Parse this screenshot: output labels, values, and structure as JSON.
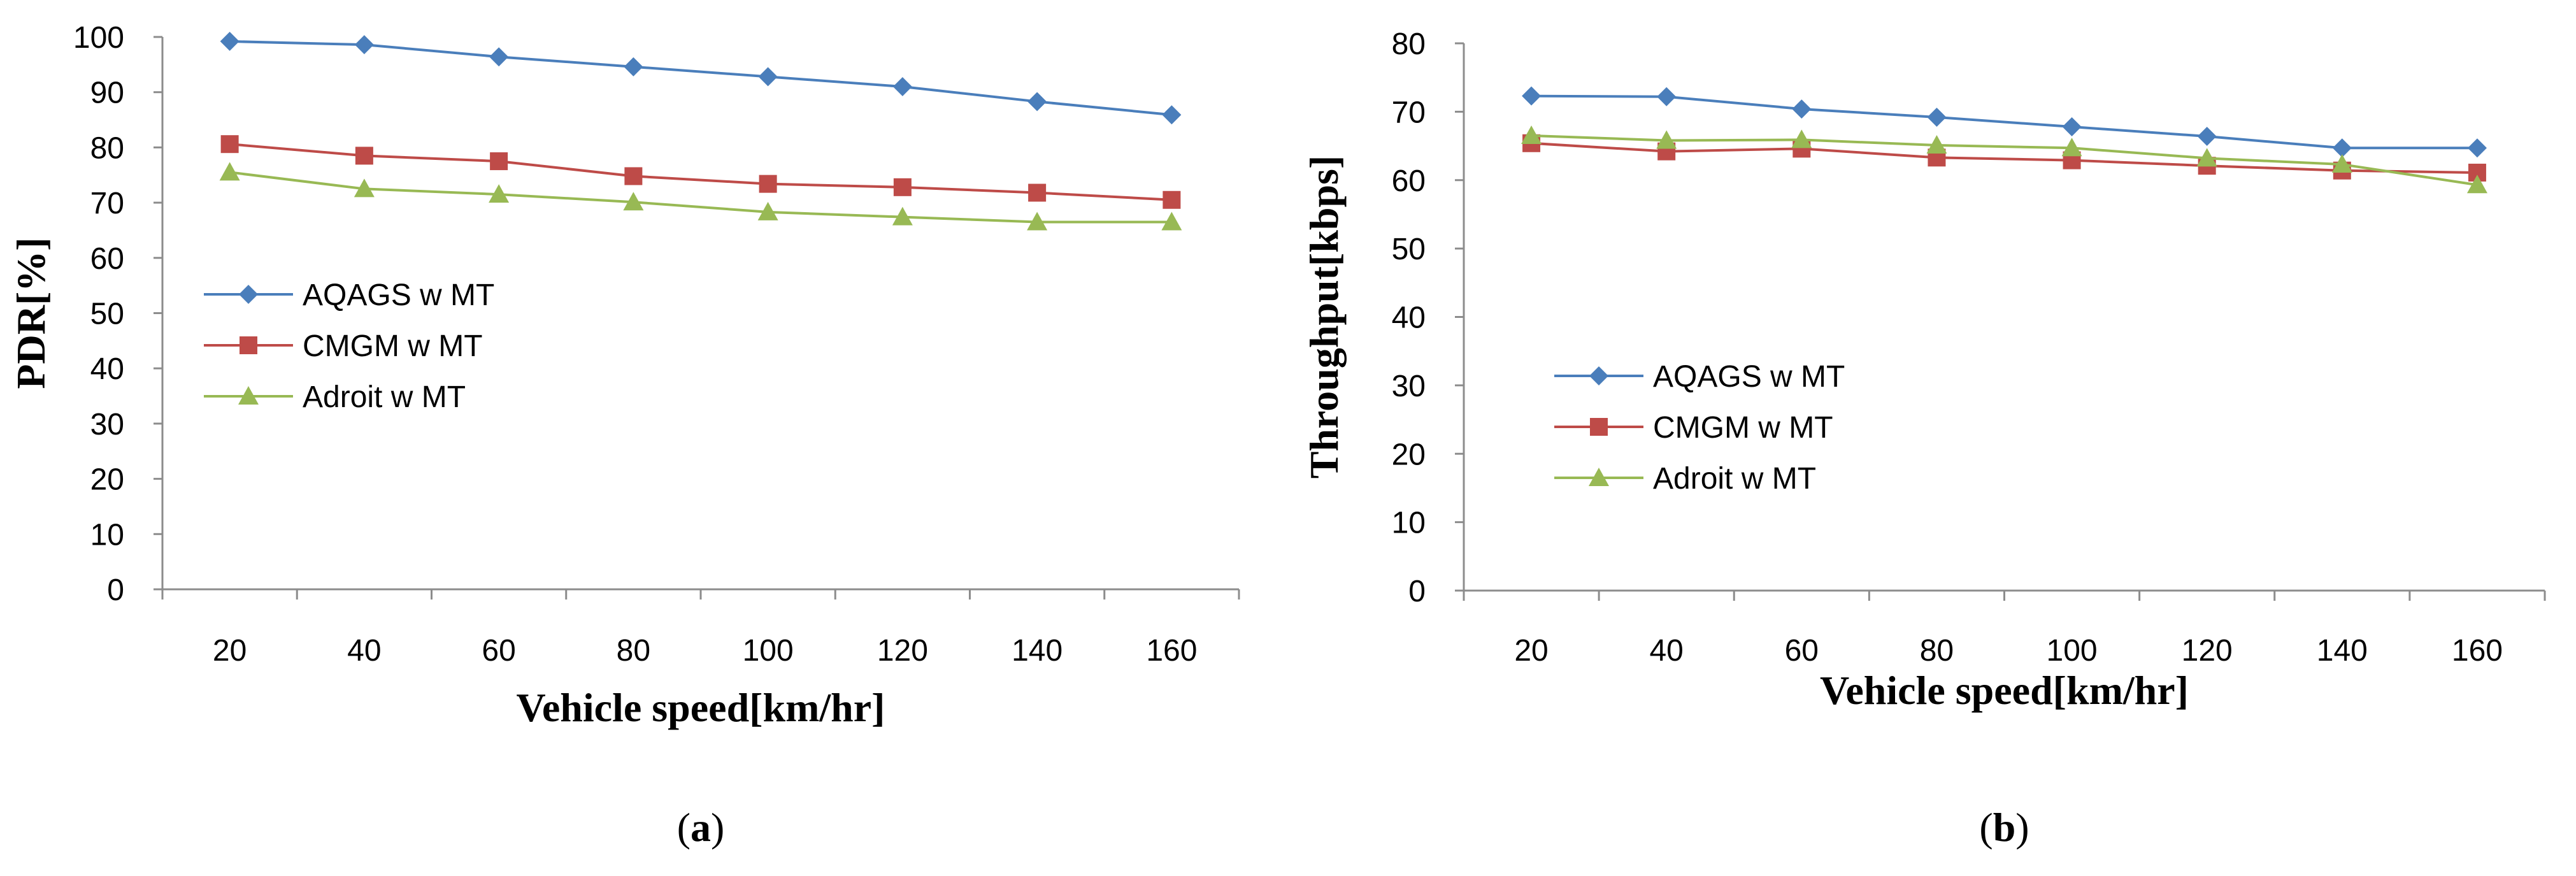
{
  "chart_data": [
    {
      "type": "line",
      "caption_letter": "a",
      "x": [
        20,
        40,
        60,
        80,
        100,
        120,
        140,
        160
      ],
      "xlabel": "Vehicle speed[km/hr]",
      "ylabel": "PDR[%]",
      "ylim": [
        0,
        100
      ],
      "yticks": [
        0,
        10,
        20,
        30,
        40,
        50,
        60,
        70,
        80,
        90,
        100
      ],
      "grid": false,
      "legend_position": "middle-left",
      "series": [
        {
          "name": "AQAGS w MT",
          "color": "#4A7EBB",
          "marker": "diamond",
          "values": [
            99.2,
            98.6,
            96.4,
            94.6,
            92.8,
            91.0,
            88.3,
            85.9
          ]
        },
        {
          "name": "CMGM w MT",
          "color": "#BE4B48",
          "marker": "square",
          "values": [
            80.6,
            78.5,
            77.5,
            74.8,
            73.4,
            72.8,
            71.8,
            70.5
          ]
        },
        {
          "name": "Adroit w MT",
          "color": "#98B954",
          "marker": "triangle",
          "values": [
            75.5,
            72.5,
            71.5,
            70.1,
            68.3,
            67.4,
            66.5,
            66.5
          ]
        }
      ]
    },
    {
      "type": "line",
      "caption_letter": "b",
      "x": [
        20,
        40,
        60,
        80,
        100,
        120,
        140,
        160
      ],
      "xlabel": "Vehicle speed[km/hr]",
      "ylabel": "Throughput[kbps]",
      "ylim": [
        0,
        80
      ],
      "yticks": [
        0,
        10,
        20,
        30,
        40,
        50,
        60,
        70,
        80
      ],
      "grid": false,
      "legend_position": "middle-left",
      "series": [
        {
          "name": "AQAGS w MT",
          "color": "#4A7EBB",
          "marker": "diamond",
          "values": [
            72.3,
            72.2,
            70.4,
            69.2,
            67.8,
            66.4,
            64.7,
            64.7
          ]
        },
        {
          "name": "CMGM w MT",
          "color": "#BE4B48",
          "marker": "square",
          "values": [
            65.4,
            64.2,
            64.6,
            63.3,
            62.9,
            62.1,
            61.4,
            61.1
          ]
        },
        {
          "name": "Adroit w MT",
          "color": "#98B954",
          "marker": "triangle",
          "values": [
            66.5,
            65.8,
            65.9,
            65.1,
            64.7,
            63.2,
            62.3,
            59.3
          ]
        }
      ]
    }
  ]
}
